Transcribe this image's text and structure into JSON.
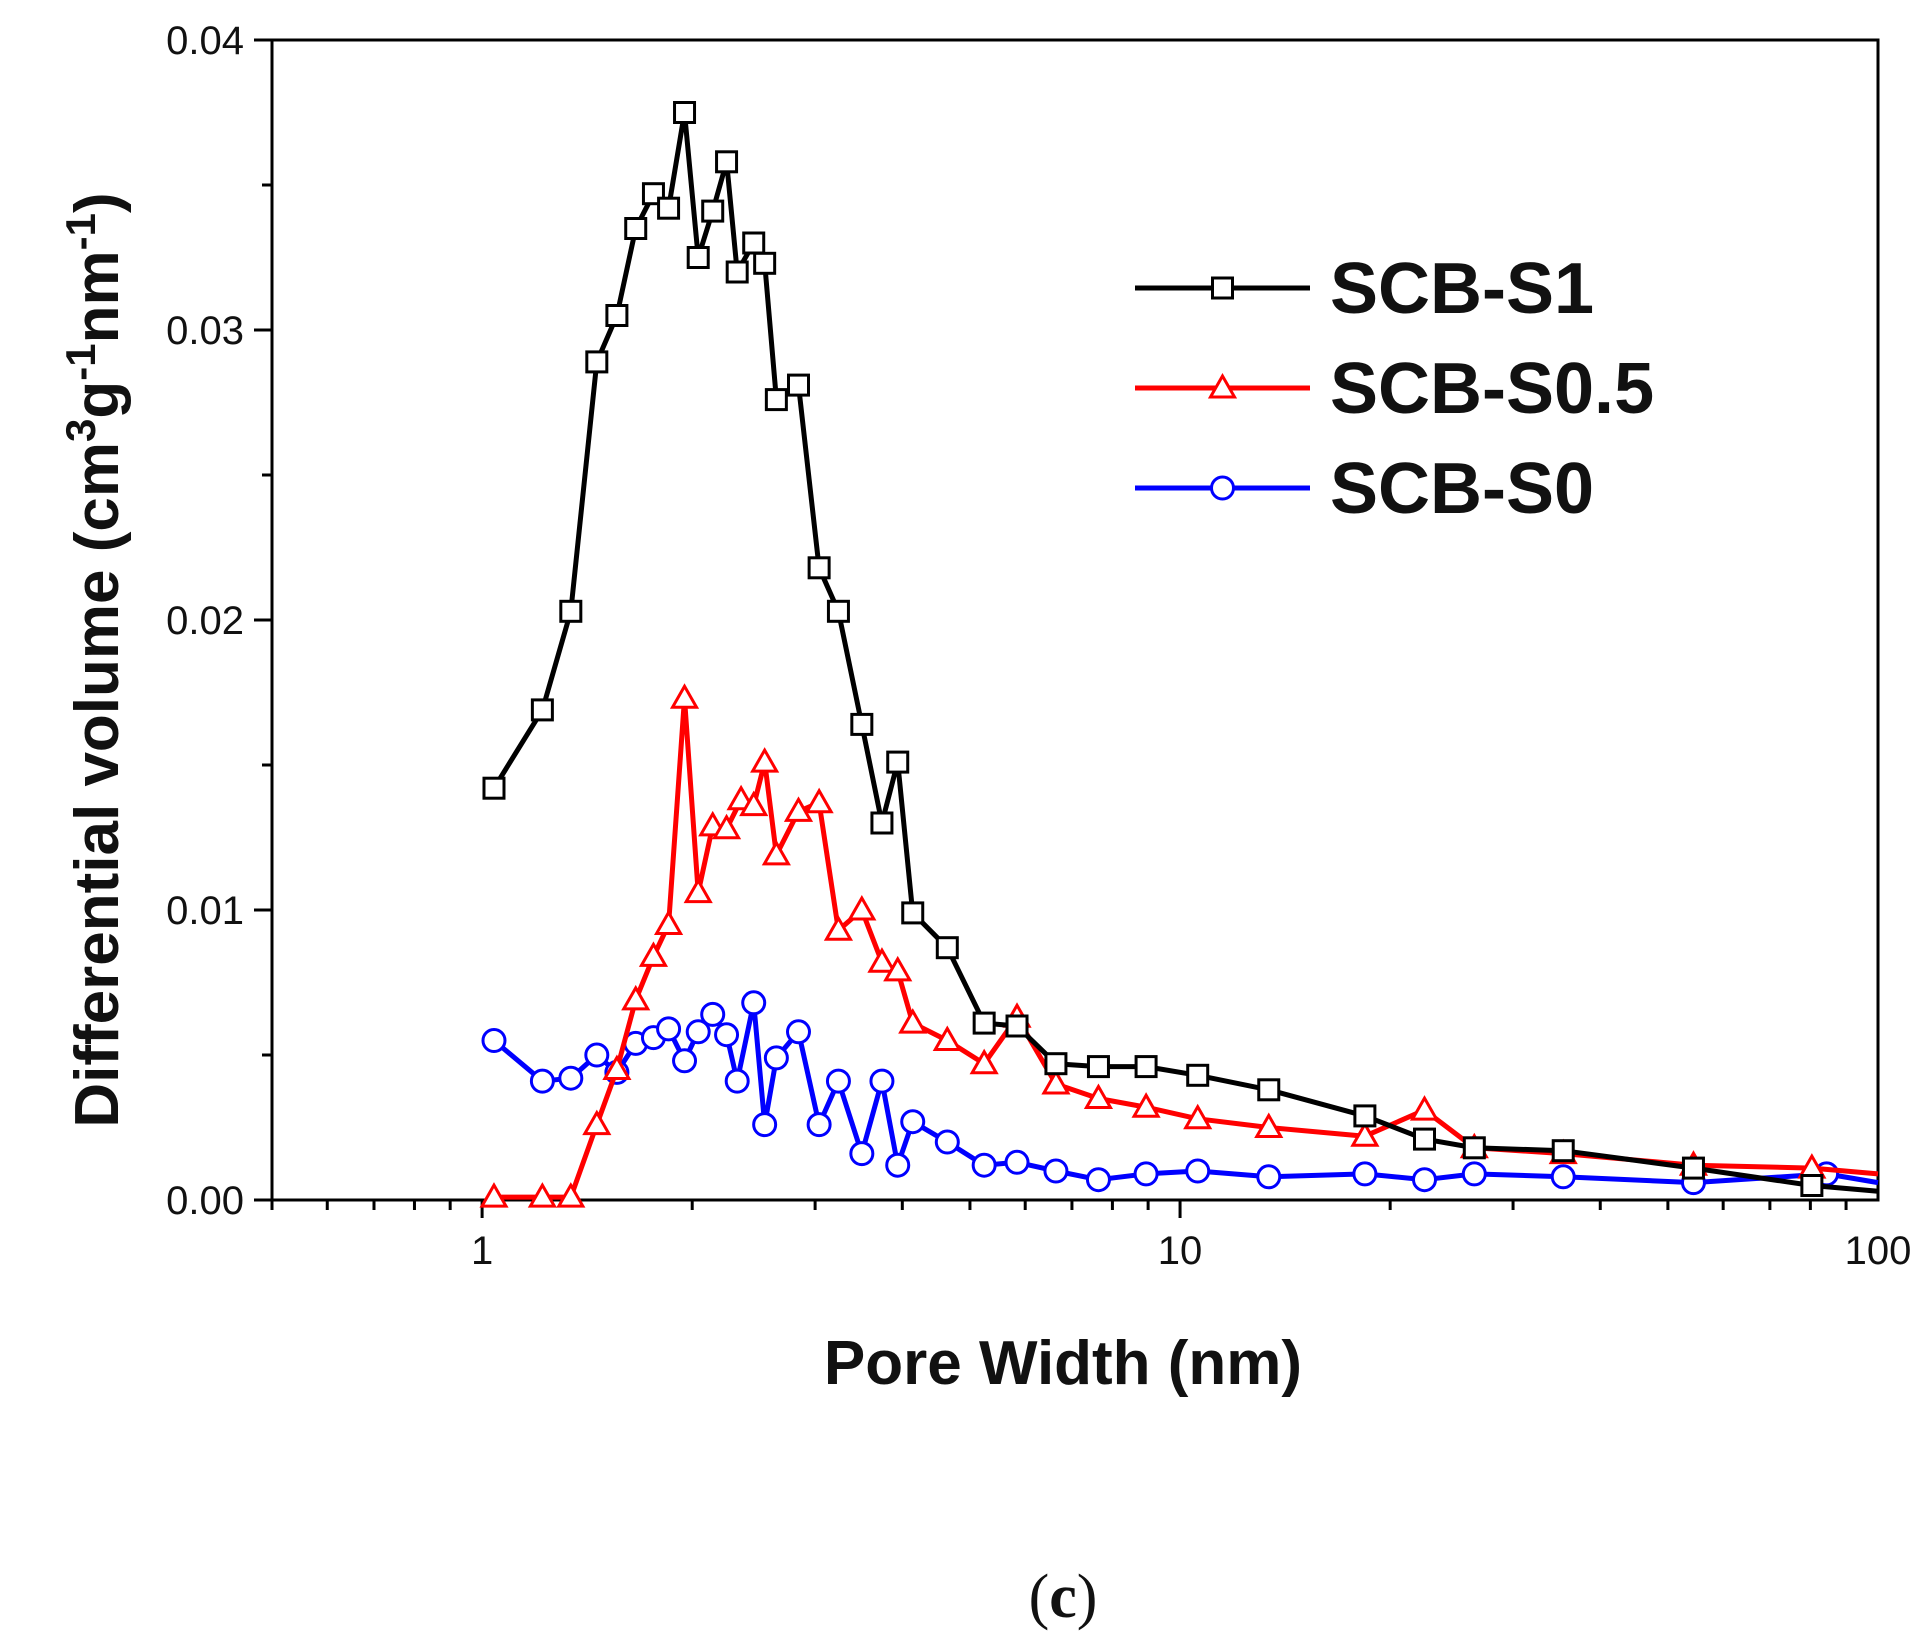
{
  "chart_data": {
    "type": "line",
    "x_scale": "log",
    "xlabel": "Pore Width (nm)",
    "ylabel": {
      "base": "Differential volume (cm",
      "sup1": "3",
      "mid": "g",
      "sup2": "-1",
      "mid2": "nm",
      "sup3": "-1",
      "end": ")"
    },
    "xlim": [
      0.5,
      100
    ],
    "ylim": [
      0,
      0.04
    ],
    "x_ticks": [
      {
        "value": 1,
        "label": "1"
      },
      {
        "value": 10,
        "label": "10"
      },
      {
        "value": 100,
        "label": "100"
      }
    ],
    "y_ticks": [
      {
        "value": 0.0,
        "label": "0.00"
      },
      {
        "value": 0.01,
        "label": "0.01"
      },
      {
        "value": 0.02,
        "label": "0.02"
      },
      {
        "value": 0.03,
        "label": "0.03"
      },
      {
        "value": 0.04,
        "label": "0.04"
      }
    ],
    "legend_position": "top-right",
    "series": [
      {
        "name": "SCB-S1",
        "color": "#000000",
        "marker": "square",
        "points": [
          [
            1.04,
            0.0142
          ],
          [
            1.22,
            0.0169
          ],
          [
            1.34,
            0.0203
          ],
          [
            1.46,
            0.0289
          ],
          [
            1.56,
            0.0305
          ],
          [
            1.66,
            0.0335
          ],
          [
            1.76,
            0.0347
          ],
          [
            1.85,
            0.0342
          ],
          [
            1.95,
            0.0375
          ],
          [
            2.04,
            0.0325
          ],
          [
            2.14,
            0.0341
          ],
          [
            2.24,
            0.0358
          ],
          [
            2.32,
            0.032
          ],
          [
            2.45,
            0.033
          ],
          [
            2.54,
            0.0323
          ],
          [
            2.64,
            0.0276
          ],
          [
            2.84,
            0.0281
          ],
          [
            3.04,
            0.0218
          ],
          [
            3.24,
            0.0203
          ],
          [
            3.5,
            0.0164
          ],
          [
            3.74,
            0.013
          ],
          [
            3.94,
            0.0151
          ],
          [
            4.14,
            0.0099
          ],
          [
            4.64,
            0.0087
          ],
          [
            5.24,
            0.0061
          ],
          [
            5.84,
            0.006
          ],
          [
            6.64,
            0.0047
          ],
          [
            7.64,
            0.0046
          ],
          [
            8.94,
            0.0046
          ],
          [
            10.6,
            0.0043
          ],
          [
            13.4,
            0.0038
          ],
          [
            18.4,
            0.0029
          ],
          [
            22.4,
            0.0021
          ],
          [
            26.4,
            0.0018
          ],
          [
            35.4,
            0.0017
          ],
          [
            54.4,
            0.0011
          ],
          [
            80.4,
            0.0005
          ],
          [
            100,
            0.0003
          ]
        ]
      },
      {
        "name": "SCB-S0.5",
        "color": "#ff0000",
        "marker": "triangle",
        "points": [
          [
            1.04,
            0.0001
          ],
          [
            1.22,
            0.0001
          ],
          [
            1.34,
            0.0001
          ],
          [
            1.46,
            0.0026
          ],
          [
            1.56,
            0.0045
          ],
          [
            1.66,
            0.0069
          ],
          [
            1.76,
            0.0084
          ],
          [
            1.85,
            0.0095
          ],
          [
            1.95,
            0.0173
          ],
          [
            2.04,
            0.0106
          ],
          [
            2.14,
            0.0129
          ],
          [
            2.24,
            0.0128
          ],
          [
            2.35,
            0.0138
          ],
          [
            2.45,
            0.0136
          ],
          [
            2.54,
            0.0151
          ],
          [
            2.64,
            0.0119
          ],
          [
            2.84,
            0.0134
          ],
          [
            3.04,
            0.0137
          ],
          [
            3.24,
            0.0093
          ],
          [
            3.5,
            0.01
          ],
          [
            3.74,
            0.0082
          ],
          [
            3.94,
            0.0079
          ],
          [
            4.14,
            0.0061
          ],
          [
            4.64,
            0.0055
          ],
          [
            5.24,
            0.0047
          ],
          [
            5.84,
            0.0063
          ],
          [
            6.64,
            0.004
          ],
          [
            7.64,
            0.0035
          ],
          [
            8.94,
            0.0032
          ],
          [
            10.6,
            0.0028
          ],
          [
            13.4,
            0.0025
          ],
          [
            18.4,
            0.0022
          ],
          [
            22.4,
            0.0031
          ],
          [
            26.4,
            0.0018
          ],
          [
            35.4,
            0.0016
          ],
          [
            54.4,
            0.0012
          ],
          [
            80.4,
            0.0011
          ],
          [
            100,
            0.0009
          ]
        ]
      },
      {
        "name": "SCB-S0",
        "color": "#0000ff",
        "marker": "circle",
        "points": [
          [
            1.04,
            0.0055
          ],
          [
            1.22,
            0.0041
          ],
          [
            1.34,
            0.0042
          ],
          [
            1.46,
            0.005
          ],
          [
            1.56,
            0.0044
          ],
          [
            1.66,
            0.0054
          ],
          [
            1.76,
            0.0056
          ],
          [
            1.85,
            0.0059
          ],
          [
            1.95,
            0.0048
          ],
          [
            2.04,
            0.0058
          ],
          [
            2.14,
            0.0064
          ],
          [
            2.24,
            0.0057
          ],
          [
            2.32,
            0.0041
          ],
          [
            2.45,
            0.0068
          ],
          [
            2.54,
            0.0026
          ],
          [
            2.64,
            0.0049
          ],
          [
            2.84,
            0.0058
          ],
          [
            3.04,
            0.0026
          ],
          [
            3.24,
            0.0041
          ],
          [
            3.5,
            0.0016
          ],
          [
            3.74,
            0.0041
          ],
          [
            3.94,
            0.0012
          ],
          [
            4.14,
            0.0027
          ],
          [
            4.64,
            0.002
          ],
          [
            5.24,
            0.0012
          ],
          [
            5.84,
            0.0013
          ],
          [
            6.64,
            0.001
          ],
          [
            7.64,
            0.0007
          ],
          [
            8.94,
            0.0009
          ],
          [
            10.6,
            0.001
          ],
          [
            13.4,
            0.0008
          ],
          [
            18.4,
            0.0009
          ],
          [
            22.4,
            0.0007
          ],
          [
            26.4,
            0.0009
          ],
          [
            35.4,
            0.0008
          ],
          [
            54.4,
            0.0006
          ],
          [
            84.4,
            0.0009
          ],
          [
            100,
            0.0006
          ]
        ]
      }
    ]
  },
  "caption": {
    "open": "(",
    "letter": "c",
    "close": ")"
  }
}
